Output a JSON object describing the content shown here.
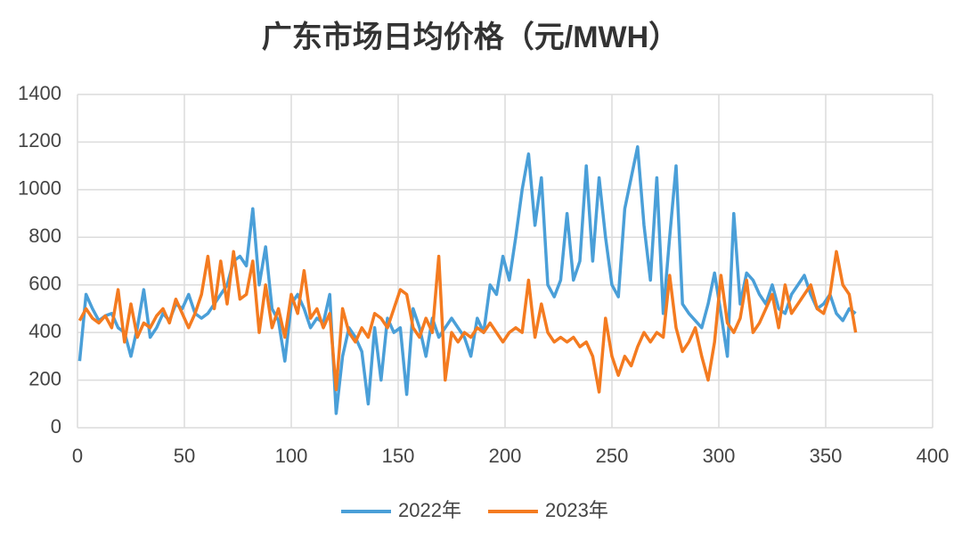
{
  "chart_data": {
    "type": "line",
    "title": "广东市场日均价格（元/MWH）",
    "x": [
      1,
      4,
      7,
      10,
      13,
      16,
      19,
      22,
      25,
      28,
      31,
      34,
      37,
      40,
      43,
      46,
      49,
      52,
      55,
      58,
      61,
      64,
      67,
      70,
      73,
      76,
      79,
      82,
      85,
      88,
      91,
      94,
      97,
      100,
      103,
      106,
      109,
      112,
      115,
      118,
      121,
      124,
      127,
      130,
      133,
      136,
      139,
      142,
      145,
      148,
      151,
      154,
      157,
      160,
      163,
      166,
      169,
      172,
      175,
      178,
      181,
      184,
      187,
      190,
      193,
      196,
      199,
      202,
      205,
      208,
      211,
      214,
      217,
      220,
      223,
      226,
      229,
      232,
      235,
      238,
      241,
      244,
      247,
      250,
      253,
      256,
      259,
      262,
      265,
      268,
      271,
      274,
      277,
      280,
      283,
      286,
      289,
      292,
      295,
      298,
      301,
      304,
      307,
      310,
      313,
      316,
      319,
      322,
      325,
      328,
      331,
      334,
      337,
      340,
      343,
      346,
      349,
      352,
      355,
      358,
      361,
      364
    ],
    "series": [
      {
        "name": "2022年",
        "color": "#4a9fd8",
        "values": [
          280,
          560,
          500,
          450,
          470,
          480,
          420,
          400,
          300,
          420,
          580,
          380,
          420,
          480,
          450,
          520,
          500,
          560,
          480,
          460,
          480,
          520,
          560,
          600,
          700,
          720,
          680,
          920,
          600,
          760,
          500,
          450,
          280,
          520,
          560,
          500,
          420,
          460,
          440,
          560,
          60,
          300,
          420,
          380,
          320,
          100,
          420,
          200,
          460,
          400,
          420,
          140,
          500,
          420,
          300,
          460,
          380,
          420,
          460,
          420,
          380,
          300,
          460,
          400,
          600,
          560,
          720,
          620,
          800,
          1000,
          1150,
          850,
          1050,
          600,
          550,
          620,
          900,
          620,
          700,
          1100,
          700,
          1050,
          800,
          600,
          550,
          920,
          1050,
          1180,
          850,
          620,
          1050,
          480,
          800,
          1100,
          520,
          480,
          450,
          420,
          520,
          650,
          480,
          300,
          900,
          520,
          650,
          620,
          560,
          520,
          600,
          500,
          480,
          560,
          600,
          640,
          560,
          500,
          520,
          560,
          480,
          450,
          500,
          480
        ]
      },
      {
        "name": "2023年",
        "color": "#f47b20",
        "values": [
          450,
          500,
          460,
          440,
          470,
          420,
          580,
          360,
          520,
          380,
          440,
          420,
          470,
          500,
          440,
          540,
          480,
          420,
          480,
          560,
          720,
          500,
          700,
          520,
          740,
          540,
          560,
          700,
          400,
          600,
          420,
          500,
          380,
          560,
          480,
          660,
          460,
          500,
          420,
          480,
          160,
          500,
          400,
          360,
          420,
          380,
          480,
          460,
          420,
          500,
          580,
          560,
          420,
          380,
          460,
          400,
          720,
          200,
          400,
          360,
          400,
          380,
          420,
          400,
          440,
          400,
          360,
          400,
          420,
          400,
          620,
          380,
          520,
          400,
          360,
          380,
          360,
          380,
          340,
          360,
          300,
          150,
          460,
          300,
          220,
          300,
          260,
          340,
          400,
          360,
          400,
          380,
          640,
          420,
          320,
          360,
          420,
          300,
          200,
          360,
          640,
          440,
          400,
          460,
          620,
          400,
          440,
          500,
          560,
          420,
          600,
          480,
          520,
          560,
          600,
          500,
          480,
          560,
          740,
          600,
          560,
          400
        ]
      }
    ],
    "xlim": [
      0,
      400
    ],
    "xticks": [
      0,
      50,
      100,
      150,
      200,
      250,
      300,
      350,
      400
    ],
    "ylim": [
      0,
      1400
    ],
    "yticks": [
      0,
      200,
      400,
      600,
      800,
      1000,
      1200,
      1400
    ],
    "grid": true,
    "legend": "bottom"
  }
}
